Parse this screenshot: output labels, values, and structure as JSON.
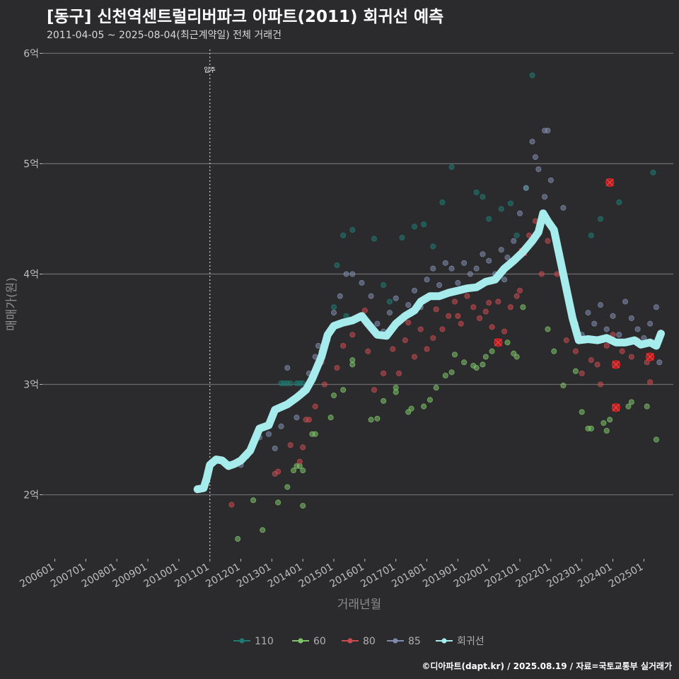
{
  "header": {
    "title": "[동구] 신천역센트럴리버파크 아파트(2011) 회귀선 예측",
    "subtitle": "2011-04-05 ~ 2025-08-04(최근계약일) 전체 거래건",
    "credit": "©디아파트(dapt.kr) / 2025.08.19 / 자료=국토교통부 실거래가"
  },
  "chart_data": {
    "type": "scatter",
    "title": "[동구] 신천역센트럴리버파크 아파트(2011) 회귀선 예측",
    "xlabel": "거래년월",
    "ylabel": "매매가(원)",
    "x_ticks": [
      "200601",
      "200701",
      "200801",
      "200901",
      "201001",
      "201101",
      "201201",
      "201301",
      "201401",
      "201501",
      "201601",
      "201701",
      "201801",
      "201901",
      "202001",
      "202101",
      "202201",
      "202301",
      "202401",
      "202501"
    ],
    "y_ticks": [
      {
        "value": 2,
        "label": "2억"
      },
      {
        "value": 3,
        "label": "3억"
      },
      {
        "value": 4,
        "label": "4억"
      },
      {
        "value": 5,
        "label": "5억"
      },
      {
        "value": 6,
        "label": "6억"
      }
    ],
    "ylim": [
      1.42,
      6.15
    ],
    "xlim": [
      2005.6,
      2025.95
    ],
    "grid": true,
    "legend_position": "bottom",
    "annotation": {
      "x": 2011.0,
      "label": "입주"
    },
    "colors": {
      "110": "#1f7a73",
      "60": "#7ec26a",
      "80": "#c94a4f",
      "85": "#7f8cad",
      "regression": "#a6ecec",
      "highlight": "#ff2020"
    },
    "series": [
      {
        "name": "110",
        "points": [
          [
            2013.3,
            3.01
          ],
          [
            2013.4,
            3.01
          ],
          [
            2013.5,
            3.01
          ],
          [
            2013.6,
            3.01
          ],
          [
            2013.8,
            3.01
          ],
          [
            2013.9,
            3.01
          ],
          [
            2014.0,
            3.01
          ],
          [
            2015.1,
            4.08
          ],
          [
            2015.3,
            4.35
          ],
          [
            2015.6,
            4.4
          ],
          [
            2016.3,
            4.32
          ],
          [
            2016.6,
            3.9
          ],
          [
            2017.2,
            4.33
          ],
          [
            2017.6,
            4.43
          ],
          [
            2017.9,
            4.45
          ],
          [
            2018.2,
            4.25
          ],
          [
            2018.5,
            4.65
          ],
          [
            2018.8,
            4.97
          ],
          [
            2019.6,
            4.74
          ],
          [
            2019.8,
            4.7
          ],
          [
            2020.0,
            4.5
          ],
          [
            2020.4,
            4.59
          ],
          [
            2020.7,
            4.64
          ],
          [
            2020.9,
            4.35
          ],
          [
            2021.2,
            4.78
          ],
          [
            2021.4,
            5.8
          ],
          [
            2023.3,
            4.35
          ],
          [
            2023.6,
            4.5
          ],
          [
            2024.2,
            4.65
          ],
          [
            2025.3,
            4.92
          ],
          [
            2015.0,
            3.7
          ],
          [
            2015.4,
            3.62
          ],
          [
            2016.8,
            3.75
          ]
        ]
      },
      {
        "name": "60",
        "points": [
          [
            2011.9,
            1.6
          ],
          [
            2012.4,
            1.95
          ],
          [
            2012.7,
            1.68
          ],
          [
            2013.2,
            1.93
          ],
          [
            2013.5,
            2.07
          ],
          [
            2013.7,
            2.22
          ],
          [
            2013.8,
            2.26
          ],
          [
            2013.9,
            2.26
          ],
          [
            2014.0,
            2.22
          ],
          [
            2014.0,
            1.9
          ],
          [
            2014.3,
            2.55
          ],
          [
            2014.4,
            2.55
          ],
          [
            2014.9,
            2.7
          ],
          [
            2015.0,
            2.9
          ],
          [
            2015.3,
            2.95
          ],
          [
            2015.6,
            3.18
          ],
          [
            2015.6,
            3.22
          ],
          [
            2016.2,
            2.68
          ],
          [
            2016.4,
            2.69
          ],
          [
            2016.6,
            2.85
          ],
          [
            2017.0,
            2.93
          ],
          [
            2017.0,
            2.97
          ],
          [
            2017.4,
            2.75
          ],
          [
            2017.5,
            2.78
          ],
          [
            2017.9,
            2.8
          ],
          [
            2018.1,
            2.86
          ],
          [
            2018.3,
            2.97
          ],
          [
            2018.6,
            3.08
          ],
          [
            2018.8,
            3.11
          ],
          [
            2018.9,
            3.27
          ],
          [
            2019.2,
            3.2
          ],
          [
            2019.5,
            3.17
          ],
          [
            2019.6,
            3.15
          ],
          [
            2019.8,
            3.18
          ],
          [
            2019.9,
            3.25
          ],
          [
            2020.1,
            3.3
          ],
          [
            2020.6,
            3.38
          ],
          [
            2020.8,
            3.28
          ],
          [
            2020.9,
            3.25
          ],
          [
            2021.1,
            3.7
          ],
          [
            2021.9,
            3.5
          ],
          [
            2022.1,
            3.3
          ],
          [
            2022.4,
            2.99
          ],
          [
            2022.8,
            3.12
          ],
          [
            2023.0,
            2.75
          ],
          [
            2023.2,
            2.6
          ],
          [
            2023.3,
            2.6
          ],
          [
            2023.7,
            2.65
          ],
          [
            2023.8,
            2.58
          ],
          [
            2023.9,
            2.68
          ],
          [
            2024.5,
            2.8
          ],
          [
            2024.6,
            2.84
          ],
          [
            2025.1,
            2.8
          ],
          [
            2025.4,
            2.5
          ]
        ]
      },
      {
        "name": "80",
        "points": [
          [
            2011.7,
            1.91
          ],
          [
            2013.1,
            2.19
          ],
          [
            2013.2,
            2.21
          ],
          [
            2013.6,
            2.45
          ],
          [
            2014.0,
            2.43
          ],
          [
            2014.1,
            2.68
          ],
          [
            2014.2,
            2.68
          ],
          [
            2014.4,
            2.8
          ],
          [
            2014.7,
            3.0
          ],
          [
            2015.1,
            3.15
          ],
          [
            2015.3,
            3.35
          ],
          [
            2015.6,
            3.45
          ],
          [
            2015.8,
            3.62
          ],
          [
            2016.1,
            3.3
          ],
          [
            2016.3,
            2.95
          ],
          [
            2016.6,
            3.1
          ],
          [
            2016.9,
            3.32
          ],
          [
            2017.1,
            3.1
          ],
          [
            2017.3,
            3.4
          ],
          [
            2017.6,
            3.25
          ],
          [
            2017.8,
            3.5
          ],
          [
            2018.0,
            3.32
          ],
          [
            2018.2,
            3.42
          ],
          [
            2018.5,
            3.5
          ],
          [
            2018.7,
            3.62
          ],
          [
            2018.9,
            3.75
          ],
          [
            2019.1,
            3.55
          ],
          [
            2019.3,
            3.8
          ],
          [
            2019.5,
            3.7
          ],
          [
            2019.7,
            3.6
          ],
          [
            2019.9,
            3.66
          ],
          [
            2020.1,
            3.52
          ],
          [
            2020.3,
            3.75
          ],
          [
            2020.5,
            3.48
          ],
          [
            2020.7,
            3.7
          ],
          [
            2020.9,
            3.8
          ],
          [
            2021.1,
            4.2
          ],
          [
            2021.3,
            4.35
          ],
          [
            2021.5,
            4.48
          ],
          [
            2021.7,
            4.0
          ],
          [
            2021.9,
            4.3
          ],
          [
            2022.2,
            4.0
          ],
          [
            2022.5,
            3.4
          ],
          [
            2022.8,
            3.3
          ],
          [
            2023.0,
            3.1
          ],
          [
            2023.3,
            3.22
          ],
          [
            2023.5,
            3.18
          ],
          [
            2023.6,
            3.0
          ],
          [
            2023.8,
            3.35
          ],
          [
            2024.0,
            3.45
          ],
          [
            2024.3,
            3.3
          ],
          [
            2024.6,
            3.25
          ],
          [
            2024.8,
            3.4
          ],
          [
            2025.1,
            3.2
          ],
          [
            2025.2,
            3.02
          ],
          [
            2016.0,
            3.67
          ],
          [
            2017.4,
            3.56
          ],
          [
            2018.3,
            3.68
          ],
          [
            2019.0,
            3.62
          ],
          [
            2020.0,
            3.74
          ],
          [
            2021.0,
            3.85
          ],
          [
            2013.9,
            2.3
          ],
          [
            2014.6,
            3.2
          ]
        ]
      },
      {
        "name": "85",
        "points": [
          [
            2012.0,
            2.27
          ],
          [
            2012.2,
            2.35
          ],
          [
            2012.4,
            2.45
          ],
          [
            2012.6,
            2.52
          ],
          [
            2012.9,
            2.55
          ],
          [
            2013.1,
            2.42
          ],
          [
            2013.3,
            2.62
          ],
          [
            2013.4,
            2.8
          ],
          [
            2013.6,
            2.85
          ],
          [
            2013.8,
            2.7
          ],
          [
            2014.0,
            2.95
          ],
          [
            2014.2,
            3.1
          ],
          [
            2014.4,
            3.25
          ],
          [
            2014.6,
            3.3
          ],
          [
            2014.8,
            3.4
          ],
          [
            2015.0,
            3.65
          ],
          [
            2015.2,
            3.8
          ],
          [
            2015.4,
            4.0
          ],
          [
            2015.6,
            4.0
          ],
          [
            2015.9,
            3.92
          ],
          [
            2016.0,
            3.6
          ],
          [
            2016.2,
            3.8
          ],
          [
            2016.4,
            3.55
          ],
          [
            2016.6,
            3.48
          ],
          [
            2016.8,
            3.65
          ],
          [
            2017.0,
            3.78
          ],
          [
            2017.2,
            3.6
          ],
          [
            2017.4,
            3.72
          ],
          [
            2017.6,
            3.85
          ],
          [
            2017.8,
            3.7
          ],
          [
            2018.0,
            3.95
          ],
          [
            2018.2,
            4.05
          ],
          [
            2018.4,
            3.9
          ],
          [
            2018.6,
            4.1
          ],
          [
            2018.8,
            4.05
          ],
          [
            2019.0,
            3.92
          ],
          [
            2019.2,
            4.1
          ],
          [
            2019.4,
            4.0
          ],
          [
            2019.6,
            4.05
          ],
          [
            2019.8,
            4.18
          ],
          [
            2020.0,
            4.12
          ],
          [
            2020.2,
            4.0
          ],
          [
            2020.4,
            4.22
          ],
          [
            2020.6,
            4.15
          ],
          [
            2020.8,
            4.3
          ],
          [
            2021.0,
            4.55
          ],
          [
            2021.2,
            4.78
          ],
          [
            2021.4,
            5.2
          ],
          [
            2021.5,
            5.06
          ],
          [
            2021.6,
            4.95
          ],
          [
            2021.8,
            4.7
          ],
          [
            2022.0,
            4.85
          ],
          [
            2022.4,
            4.6
          ],
          [
            2022.8,
            3.55
          ],
          [
            2023.0,
            3.45
          ],
          [
            2023.2,
            3.65
          ],
          [
            2023.4,
            3.55
          ],
          [
            2023.6,
            3.72
          ],
          [
            2023.8,
            3.5
          ],
          [
            2024.0,
            3.62
          ],
          [
            2024.2,
            3.45
          ],
          [
            2024.4,
            3.75
          ],
          [
            2024.6,
            3.6
          ],
          [
            2024.8,
            3.5
          ],
          [
            2025.0,
            3.42
          ],
          [
            2025.2,
            3.55
          ],
          [
            2025.4,
            3.7
          ],
          [
            2025.5,
            3.2
          ],
          [
            2021.8,
            5.3
          ],
          [
            2021.9,
            5.3
          ],
          [
            2018.3,
            3.8
          ],
          [
            2019.5,
            3.88
          ],
          [
            2020.5,
            3.95
          ],
          [
            2017.5,
            3.64
          ],
          [
            2016.9,
            3.52
          ],
          [
            2013.5,
            3.15
          ],
          [
            2014.5,
            3.35
          ]
        ]
      }
    ],
    "highlighted": [
      [
        2020.3,
        3.38
      ],
      [
        2021.1,
        4.2
      ],
      [
        2023.9,
        4.83
      ],
      [
        2024.1,
        2.79
      ],
      [
        2024.1,
        3.18
      ],
      [
        2025.2,
        3.25
      ]
    ],
    "regression": {
      "name": "회귀선",
      "points": [
        [
          2010.6,
          2.05
        ],
        [
          2010.8,
          2.06
        ],
        [
          2010.9,
          2.15
        ],
        [
          2011.0,
          2.27
        ],
        [
          2011.2,
          2.32
        ],
        [
          2011.4,
          2.31
        ],
        [
          2011.6,
          2.26
        ],
        [
          2011.8,
          2.28
        ],
        [
          2012.0,
          2.31
        ],
        [
          2012.3,
          2.4
        ],
        [
          2012.6,
          2.6
        ],
        [
          2012.9,
          2.63
        ],
        [
          2013.1,
          2.77
        ],
        [
          2013.5,
          2.82
        ],
        [
          2013.8,
          2.88
        ],
        [
          2014.1,
          2.95
        ],
        [
          2014.3,
          3.05
        ],
        [
          2014.6,
          3.25
        ],
        [
          2014.8,
          3.45
        ],
        [
          2015.0,
          3.53
        ],
        [
          2015.3,
          3.56
        ],
        [
          2015.6,
          3.58
        ],
        [
          2015.9,
          3.62
        ],
        [
          2016.1,
          3.55
        ],
        [
          2016.4,
          3.45
        ],
        [
          2016.7,
          3.44
        ],
        [
          2017.0,
          3.55
        ],
        [
          2017.3,
          3.62
        ],
        [
          2017.6,
          3.67
        ],
        [
          2017.8,
          3.75
        ],
        [
          2018.1,
          3.8
        ],
        [
          2018.4,
          3.8
        ],
        [
          2018.7,
          3.83
        ],
        [
          2019.0,
          3.85
        ],
        [
          2019.3,
          3.87
        ],
        [
          2019.6,
          3.88
        ],
        [
          2019.9,
          3.93
        ],
        [
          2020.2,
          3.95
        ],
        [
          2020.5,
          4.05
        ],
        [
          2020.8,
          4.12
        ],
        [
          2021.1,
          4.2
        ],
        [
          2021.4,
          4.3
        ],
        [
          2021.6,
          4.38
        ],
        [
          2021.75,
          4.55
        ],
        [
          2021.9,
          4.48
        ],
        [
          2022.1,
          4.4
        ],
        [
          2022.4,
          4.0
        ],
        [
          2022.7,
          3.6
        ],
        [
          2022.9,
          3.4
        ],
        [
          2023.2,
          3.41
        ],
        [
          2023.5,
          3.4
        ],
        [
          2023.8,
          3.42
        ],
        [
          2024.1,
          3.38
        ],
        [
          2024.4,
          3.38
        ],
        [
          2024.7,
          3.4
        ],
        [
          2024.9,
          3.36
        ],
        [
          2025.2,
          3.38
        ],
        [
          2025.4,
          3.35
        ],
        [
          2025.55,
          3.46
        ]
      ]
    },
    "legend": [
      {
        "key": "110",
        "label": "110"
      },
      {
        "key": "60",
        "label": "60"
      },
      {
        "key": "80",
        "label": "80"
      },
      {
        "key": "85",
        "label": "85"
      },
      {
        "key": "regression",
        "label": "회귀선"
      }
    ]
  }
}
